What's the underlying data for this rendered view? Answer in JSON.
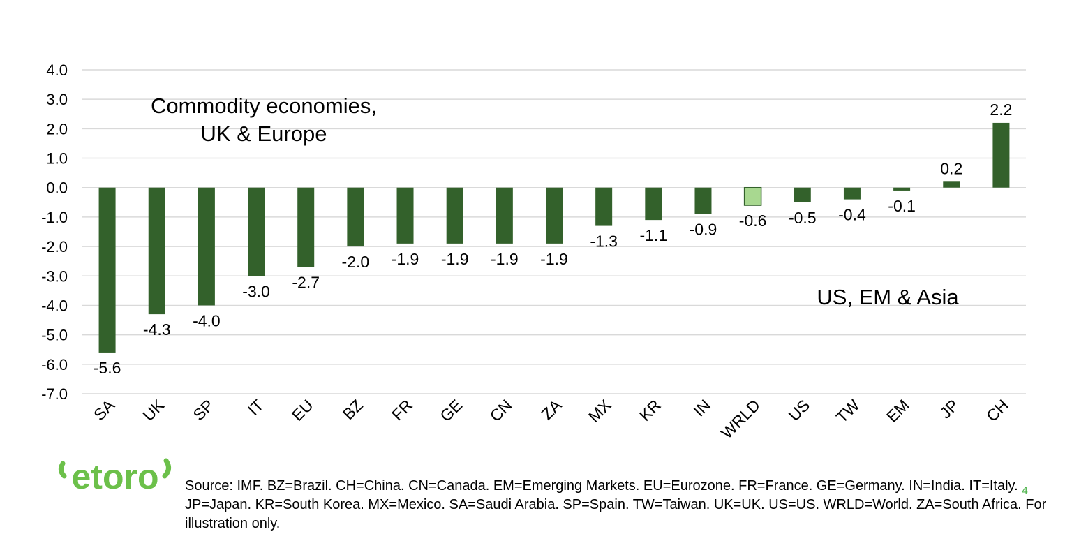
{
  "chart_data": {
    "type": "bar",
    "categories": [
      "SA",
      "UK",
      "SP",
      "IT",
      "EU",
      "BZ",
      "FR",
      "GE",
      "CN",
      "ZA",
      "MX",
      "KR",
      "IN",
      "WRLD",
      "US",
      "TW",
      "EM",
      "JP",
      "CH"
    ],
    "values": [
      -5.6,
      -4.3,
      -4.0,
      -3.0,
      -2.7,
      -2.0,
      -1.9,
      -1.9,
      -1.9,
      -1.9,
      -1.3,
      -1.1,
      -0.9,
      -0.6,
      -0.5,
      -0.4,
      -0.1,
      0.2,
      2.2
    ],
    "data_labels": [
      "-5.6",
      "-4.3",
      "-4.0",
      "-3.0",
      "-2.7",
      "-2.0",
      "-1.9",
      "-1.9",
      "-1.9",
      "-1.9",
      "-1.3",
      "-1.1",
      "-0.9",
      "-0.6",
      "-0.5",
      "-0.4",
      "-0.1",
      "0.2",
      "2.2"
    ],
    "highlight_category": "WRLD",
    "ylim": [
      -7.0,
      4.0
    ],
    "yticks": [
      4.0,
      3.0,
      2.0,
      1.0,
      0.0,
      -1.0,
      -2.0,
      -3.0,
      -4.0,
      -5.0,
      -6.0,
      -7.0
    ],
    "ytick_labels": [
      "4.0",
      "3.0",
      "2.0",
      "1.0",
      "0.0",
      "-1.0",
      "-2.0",
      "-3.0",
      "-4.0",
      "-5.0",
      "-6.0",
      "-7.0"
    ],
    "title": "",
    "xlabel": "",
    "ylabel": "",
    "grid": true,
    "legend": "none",
    "colors": {
      "bar": "#33612b",
      "highlight": "#a8d890",
      "highlight_border": "#33612b",
      "grid": "#d9d9d9"
    },
    "annotations": {
      "left_line1": "Commodity economies,",
      "left_line2": "UK & Europe",
      "right": "US, EM & Asia"
    }
  },
  "logo": {
    "text": "etoro",
    "color": "#6cc04a"
  },
  "footer": {
    "source": "Source:  IMF. BZ=Brazil. CH=China. CN=Canada. EM=Emerging Markets. EU=Eurozone. FR=France. GE=Germany. IN=India. IT=Italy. JP=Japan. KR=South Korea. MX=Mexico. SA=Saudi Arabia. SP=Spain. TW=Taiwan. UK=UK. US=US. WRLD=World. ZA=South Africa. For illustration only.",
    "page_number": "4"
  }
}
